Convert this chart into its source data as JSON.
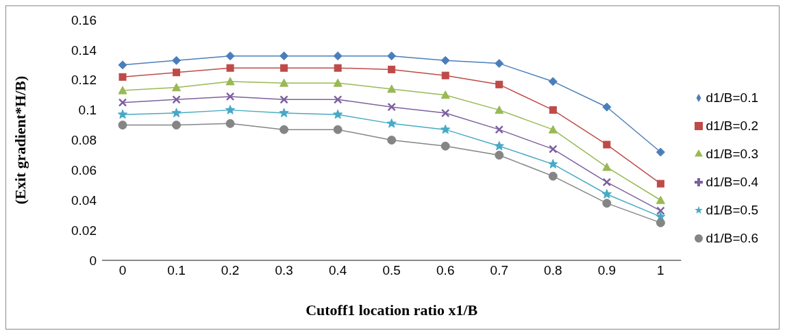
{
  "chart_data": {
    "type": "line",
    "xlabel": "Cutoff1 location ratio x1/B",
    "ylabel": "(Exit gradient*H/B)",
    "categories": [
      "0",
      "0.1",
      "0.2",
      "0.3",
      "0.4",
      "0.5",
      "0.6",
      "0.7",
      "0.8",
      "0.9",
      "1"
    ],
    "ylim": [
      0,
      0.16
    ],
    "yticks": [
      0,
      0.02,
      0.04,
      0.06,
      0.08,
      0.1,
      0.12,
      0.14,
      0.16
    ],
    "grid": false,
    "legend": "right",
    "series": [
      {
        "name": "d1/B=0.1",
        "color": "#4a7ebb",
        "marker": "diamond",
        "values": [
          0.13,
          0.133,
          0.136,
          0.136,
          0.136,
          0.136,
          0.133,
          0.131,
          0.119,
          0.102,
          0.072
        ]
      },
      {
        "name": "d1/B=0.2",
        "color": "#be4b48",
        "marker": "square",
        "values": [
          0.122,
          0.125,
          0.128,
          0.128,
          0.128,
          0.127,
          0.123,
          0.117,
          0.1,
          0.077,
          0.051
        ]
      },
      {
        "name": "d1/B=0.3",
        "color": "#98b954",
        "marker": "triangle",
        "values": [
          0.113,
          0.115,
          0.119,
          0.118,
          0.118,
          0.114,
          0.11,
          0.1,
          0.087,
          0.062,
          0.04
        ]
      },
      {
        "name": "d1/B=0.4",
        "color": "#7d60a0",
        "marker": "cross",
        "values": [
          0.105,
          0.107,
          0.109,
          0.107,
          0.107,
          0.102,
          0.098,
          0.087,
          0.074,
          0.052,
          0.033
        ]
      },
      {
        "name": "d1/B=0.5",
        "color": "#46aac5",
        "marker": "star",
        "values": [
          0.097,
          0.098,
          0.1,
          0.098,
          0.097,
          0.091,
          0.087,
          0.076,
          0.064,
          0.044,
          0.029
        ]
      },
      {
        "name": "d1/B=0.6",
        "color": "#858585",
        "marker": "circle",
        "values": [
          0.09,
          0.09,
          0.091,
          0.087,
          0.087,
          0.08,
          0.076,
          0.07,
          0.056,
          0.038,
          0.025
        ]
      }
    ]
  }
}
